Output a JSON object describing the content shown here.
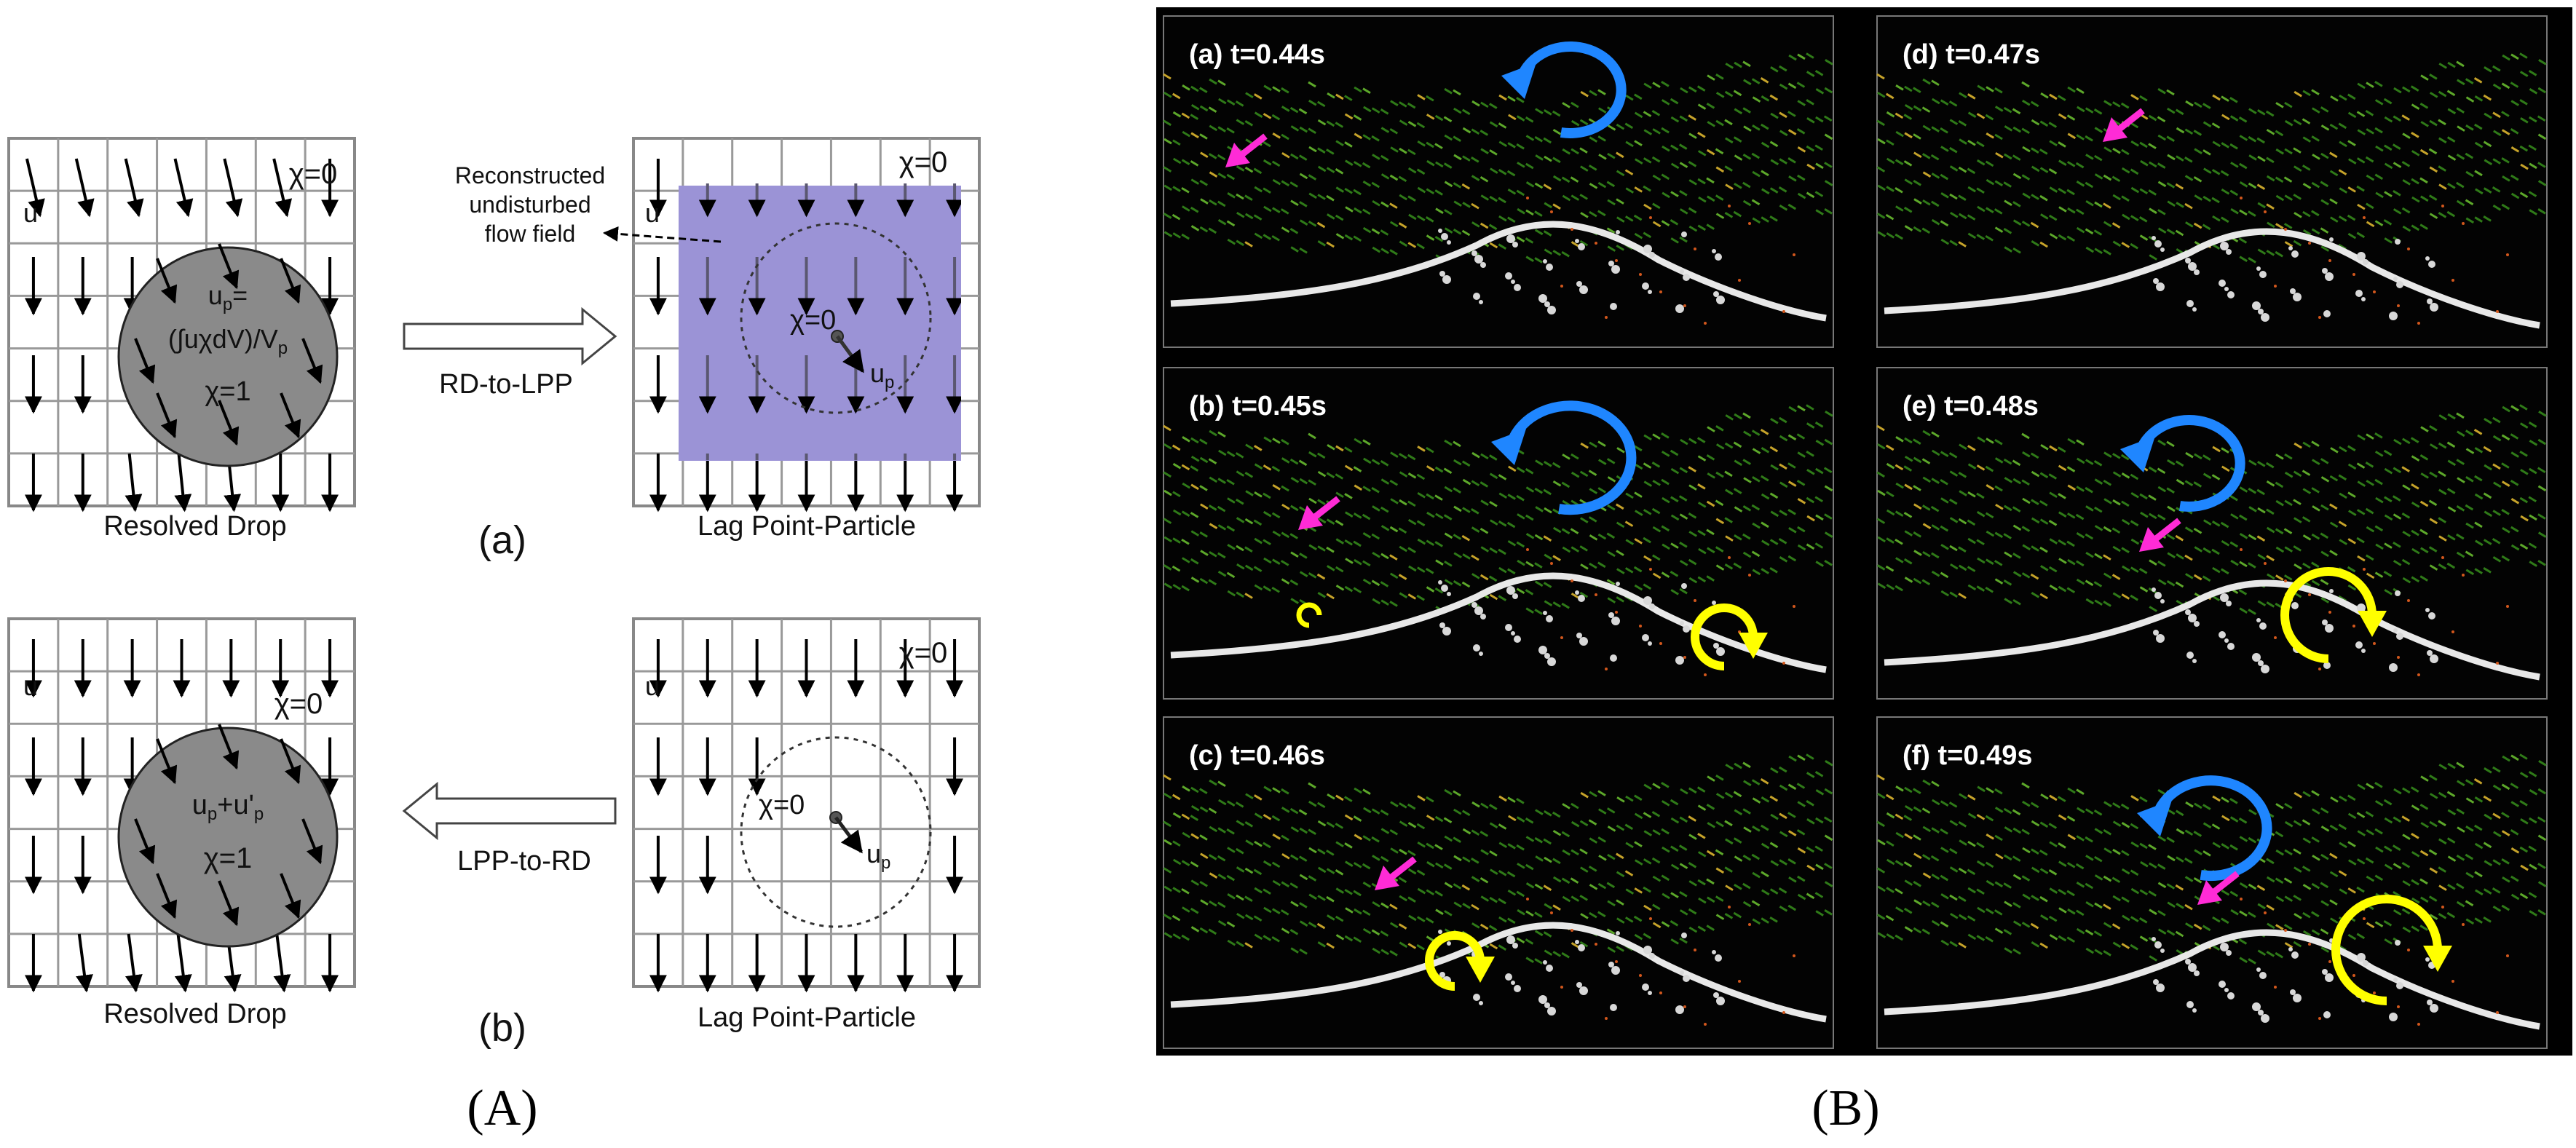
{
  "figure_caption_left": "(A)",
  "figure_caption_right": "(B)",
  "panel_a": {
    "subcaption": "(a)",
    "left_grid": {
      "title": "Resolved Drop",
      "chi_outside": "χ=0",
      "u_label": "u",
      "drop_line1": "u",
      "drop_line1_sub": "p",
      "drop_line1_suffix": "=",
      "drop_line2": "(∫uχdV)/V",
      "drop_line2_sub": "p",
      "drop_line3": "χ=1"
    },
    "arrow_label": "RD-to-LPP",
    "annotation_lines": [
      "Reconstructed",
      "undisturbed",
      "flow field"
    ],
    "right_grid": {
      "title": "Lag Point-Particle",
      "chi_outside": "χ=0",
      "u_label": "u",
      "chi_inside": "χ=0",
      "particle_vel": "u",
      "particle_vel_sub": "p"
    }
  },
  "panel_b": {
    "subcaption": "(b)",
    "left_grid": {
      "title": "Resolved Drop",
      "chi_outside": "χ=0",
      "u_label": "u",
      "drop_line1": "u",
      "drop_line1_sub": "p",
      "drop_line1_mid": "+u'",
      "drop_line1_sub2": "p",
      "drop_line2": "χ=1"
    },
    "arrow_label": "LPP-to-RD",
    "right_grid": {
      "title": "Lag Point-Particle",
      "chi_outside": "χ=0",
      "u_label": "u",
      "chi_inside": "χ=0",
      "particle_vel": "u",
      "particle_vel_sub": "p"
    }
  },
  "snapshots": [
    {
      "label": "(a) t=0.44s",
      "blue": true,
      "yellow": false
    },
    {
      "label": "(d) t=0.47s",
      "blue": false,
      "yellow": false
    },
    {
      "label": "(b) t=0.45s",
      "blue": true,
      "yellow": true
    },
    {
      "label": "(e) t=0.48s",
      "blue": true,
      "yellow": true
    },
    {
      "label": "(c) t=0.46s",
      "blue": false,
      "yellow": true
    },
    {
      "label": "(f) t=0.49s",
      "blue": true,
      "yellow": true
    }
  ],
  "colors": {
    "grid": "#888888",
    "drop_fill": "#8a8a8a",
    "lpp_box": "#9b93d6",
    "panel_bg": "#000000",
    "blue_arrow": "#1f86ff",
    "yellow_arrow": "#ffff00",
    "magenta_arrow": "#ff2bd6",
    "flow_green": "#3f8f1c",
    "foam": "#e8e8e8"
  }
}
